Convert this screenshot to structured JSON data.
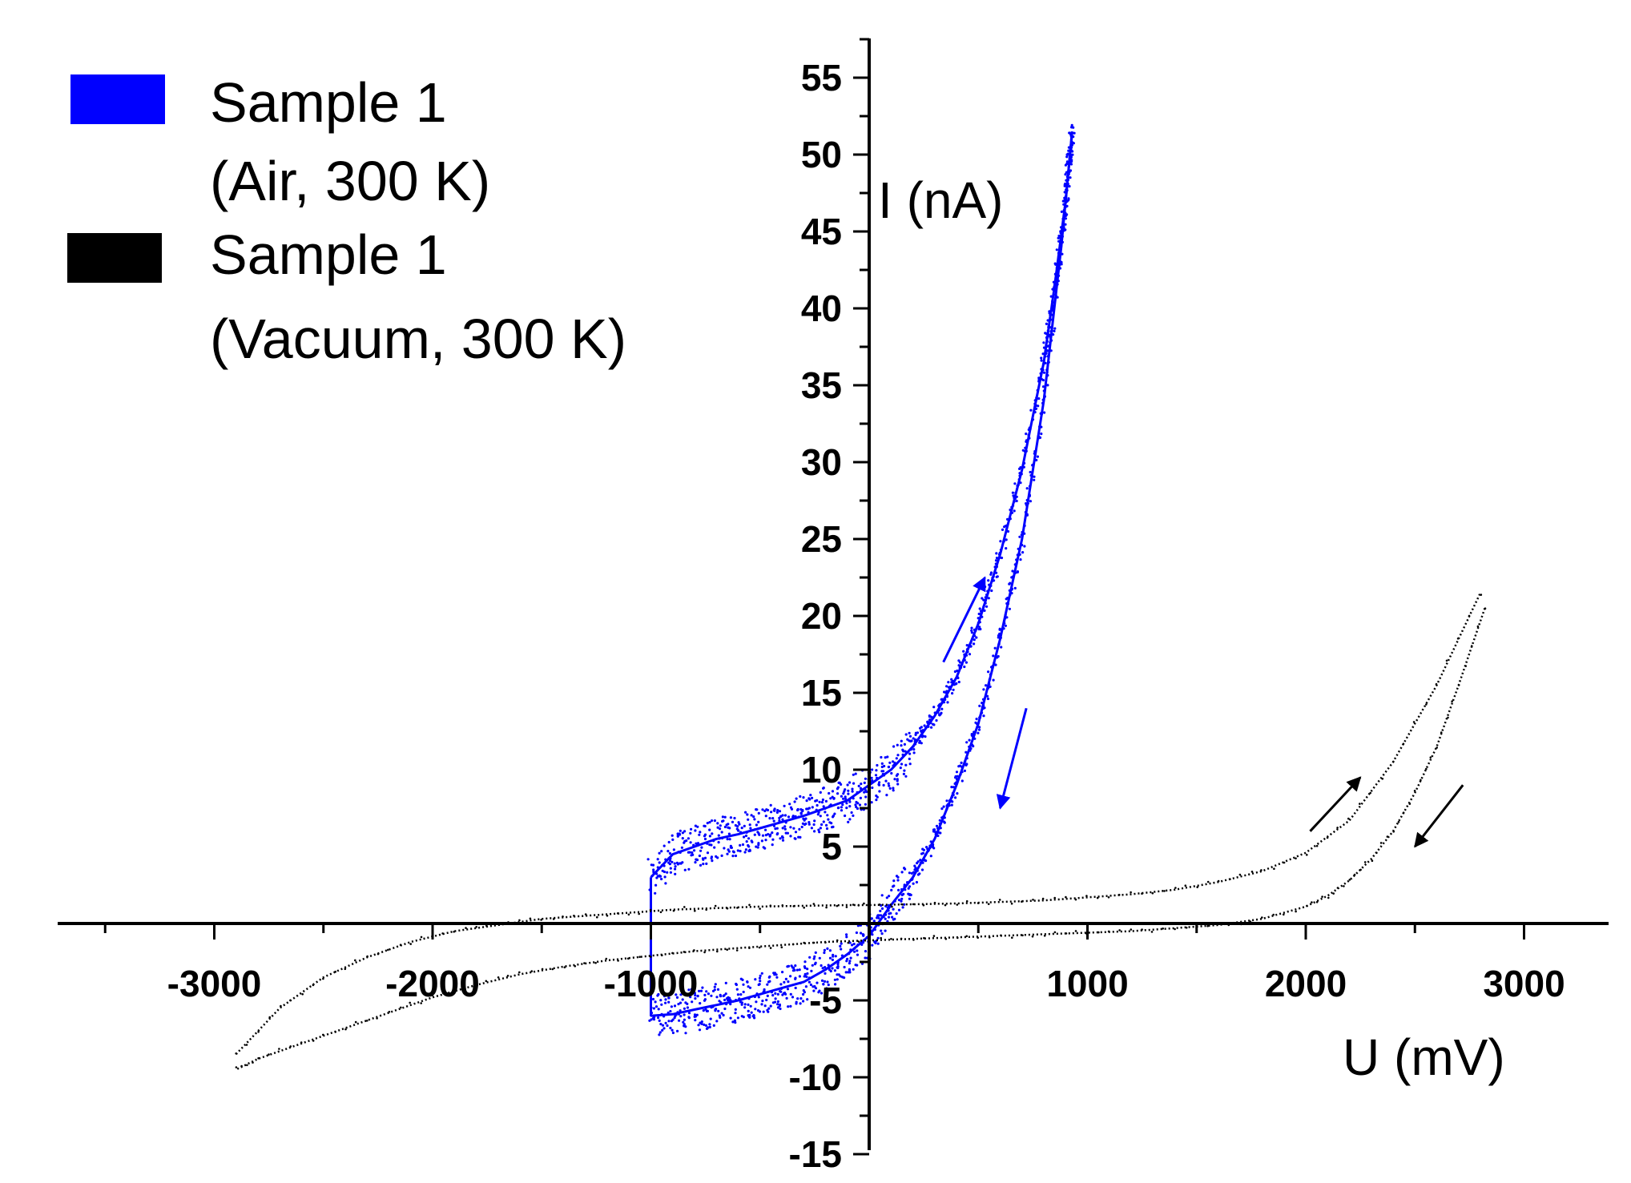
{
  "chart_data": {
    "type": "scatter",
    "title": "",
    "xlabel": "U (mV)",
    "ylabel": "I (nA)",
    "xlim": [
      -3700,
      3300
    ],
    "ylim": [
      -15,
      58
    ],
    "x_ticks": [
      -3000,
      -2000,
      -1000,
      1000,
      2000,
      3000
    ],
    "x_tick_labels": [
      "-3000",
      "-2000",
      "-1000",
      "1000",
      "2000",
      "3000"
    ],
    "y_ticks": [
      -15,
      -10,
      -5,
      5,
      10,
      15,
      20,
      25,
      30,
      35,
      40,
      45,
      50,
      55
    ],
    "y_tick_labels": [
      "-15",
      "-10",
      "-5",
      "5",
      "10",
      "15",
      "20",
      "25",
      "30",
      "35",
      "40",
      "45",
      "50",
      "55"
    ],
    "grid": false,
    "legend_position": "top-left",
    "series": [
      {
        "name": "Sample 1 (Air, 300 K)",
        "legend_lines": [
          "Sample 1",
          "(Air, 300 K)"
        ],
        "color": "#0000ff",
        "branches": [
          {
            "direction": "forward",
            "x": [
              -1000,
              -900,
              -800,
              -700,
              -600,
              -500,
              -400,
              -300,
              -200,
              -100,
              0,
              100,
              200,
              300,
              400,
              500,
              600,
              700,
              800,
              850,
              900,
              930
            ],
            "y": [
              3,
              4.5,
              5,
              5.5,
              5.8,
              6.2,
              6.6,
              7,
              7.5,
              8,
              9,
              10,
              11.5,
              13.5,
              16,
              19.5,
              24,
              29.5,
              36.5,
              41.5,
              47,
              51.5
            ]
          },
          {
            "direction": "reverse",
            "x": [
              930,
              880,
              800,
              700,
              600,
              500,
              400,
              300,
              200,
              100,
              0,
              -100,
              -200,
              -300,
              -400,
              -500,
              -600,
              -700,
              -800,
              -900,
              -1000
            ],
            "y": [
              51.5,
              44,
              34,
              25,
              18.5,
              13,
              9,
              5.5,
              3,
              1.2,
              -0.8,
              -2,
              -3,
              -3.8,
              -4.2,
              -4.6,
              -5,
              -5.3,
              -5.6,
              -5.9,
              -6
            ]
          }
        ]
      },
      {
        "name": "Sample 1 (Vacuum, 300 K)",
        "legend_lines": [
          "Sample 1",
          "(Vacuum, 300 K)"
        ],
        "color": "#000000",
        "branches": [
          {
            "direction": "forward",
            "x": [
              -2900,
              -2700,
              -2500,
              -2300,
              -2100,
              -1900,
              -1700,
              -1500,
              -1300,
              -1100,
              -900,
              -700,
              -500,
              -300,
              -100,
              0,
              200,
              400,
              600,
              800,
              1000,
              1200,
              1400,
              1600,
              1800,
              2000,
              2200,
              2400,
              2600,
              2800
            ],
            "y": [
              -8.5,
              -5.5,
              -3.5,
              -2.2,
              -1.2,
              -0.5,
              -0.1,
              0.3,
              0.5,
              0.7,
              0.9,
              1.0,
              1.1,
              1.15,
              1.2,
              1.2,
              1.25,
              1.3,
              1.4,
              1.5,
              1.7,
              1.9,
              2.2,
              2.7,
              3.4,
              4.6,
              6.7,
              10.5,
              15.5,
              21.5
            ]
          },
          {
            "direction": "reverse",
            "x": [
              2820,
              2700,
              2600,
              2500,
              2400,
              2300,
              2200,
              2100,
              2000,
              1800,
              1600,
              1400,
              1200,
              1000,
              800,
              600,
              400,
              200,
              0,
              -200,
              -400,
              -600,
              -800,
              -1000,
              -1200,
              -1400,
              -1600,
              -1800,
              -2000,
              -2200,
              -2400,
              -2600,
              -2800,
              -2900
            ],
            "y": [
              20.5,
              15.5,
              11.5,
              8.5,
              6,
              4.2,
              2.8,
              1.8,
              1.1,
              0.3,
              -0.1,
              -0.3,
              -0.5,
              -0.6,
              -0.7,
              -0.8,
              -0.9,
              -1,
              -1.1,
              -1.2,
              -1.4,
              -1.6,
              -1.8,
              -2.1,
              -2.4,
              -2.8,
              -3.3,
              -4,
              -4.8,
              -5.8,
              -6.8,
              -7.8,
              -8.8,
              -9.5
            ]
          }
        ]
      }
    ],
    "annotations": [
      {
        "name": "blue-arrow-up",
        "from": [
          340,
          17
        ],
        "to": [
          530,
          22.5
        ],
        "color": "#0000ff"
      },
      {
        "name": "blue-arrow-down",
        "from": [
          720,
          14
        ],
        "to": [
          600,
          7.5
        ],
        "color": "#0000ff"
      },
      {
        "name": "black-arrow-up",
        "from": [
          2020,
          6
        ],
        "to": [
          2250,
          9.5
        ],
        "color": "#000000"
      },
      {
        "name": "black-arrow-down",
        "from": [
          2720,
          9
        ],
        "to": [
          2500,
          5
        ],
        "color": "#000000"
      }
    ]
  }
}
